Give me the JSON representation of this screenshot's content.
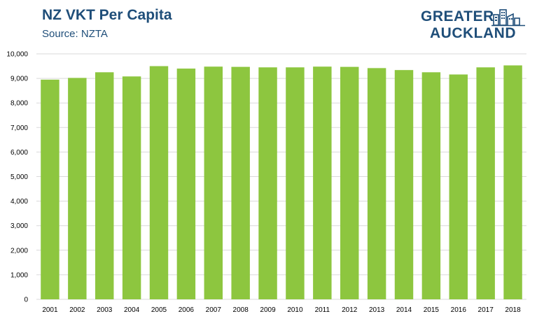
{
  "header": {
    "title": "NZ VKT Per Capita",
    "subtitle": "Source: NZTA"
  },
  "logo": {
    "line1": "GREATER",
    "line2": "AUCKLAND",
    "icon": "city-buildings-icon"
  },
  "colors": {
    "bar": "#8dc63f",
    "title": "#1f4e79",
    "grid": "#d9d9d9",
    "axis_text": "#000000"
  },
  "chart_data": {
    "type": "bar",
    "title": "NZ VKT Per Capita",
    "subtitle": "Source: NZTA",
    "xlabel": "",
    "ylabel": "",
    "categories": [
      "2001",
      "2002",
      "2003",
      "2004",
      "2005",
      "2006",
      "2007",
      "2008",
      "2009",
      "2010",
      "2011",
      "2012",
      "2013",
      "2014",
      "2015",
      "2016",
      "2017",
      "2018"
    ],
    "values": [
      8950,
      9020,
      9250,
      9080,
      9500,
      9400,
      9480,
      9470,
      9450,
      9450,
      9480,
      9470,
      9420,
      9340,
      9250,
      9160,
      9450,
      9530
    ],
    "ylim": [
      0,
      10000
    ],
    "yticks": [
      0,
      1000,
      2000,
      3000,
      4000,
      5000,
      6000,
      7000,
      8000,
      9000,
      10000
    ],
    "ytick_labels": [
      "0",
      "1,000",
      "2,000",
      "3,000",
      "4,000",
      "5,000",
      "6,000",
      "7,000",
      "8,000",
      "9,000",
      "10,000"
    ],
    "grid": true,
    "legend": "none"
  }
}
